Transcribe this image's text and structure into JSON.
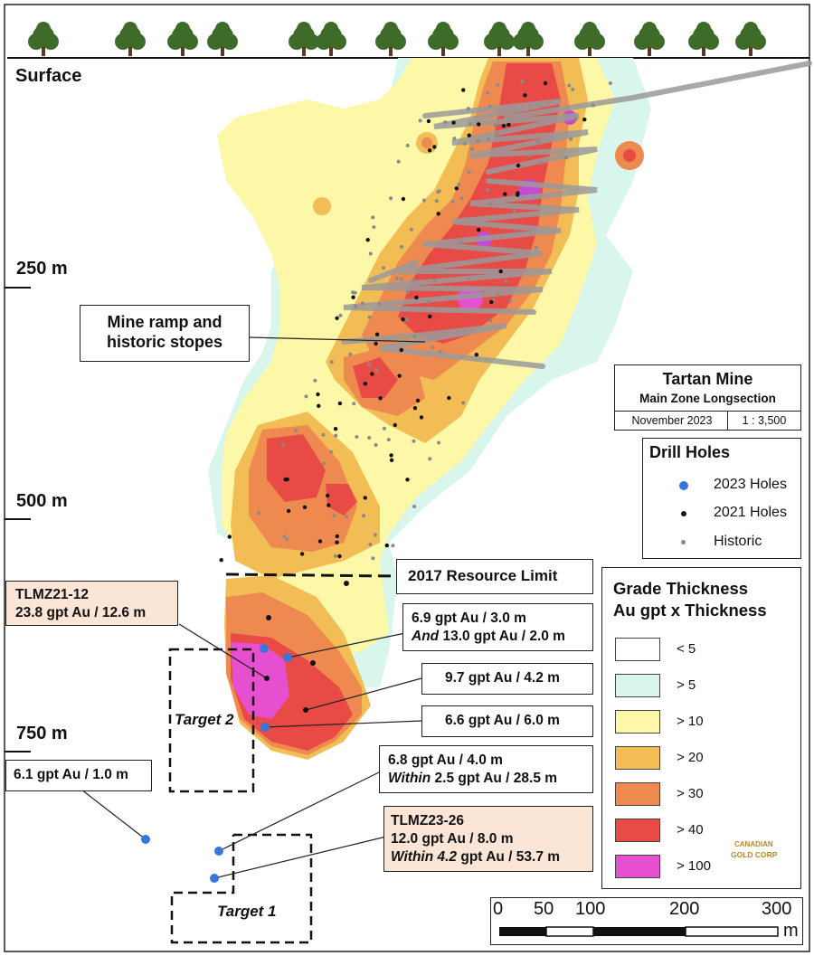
{
  "surface_label": "Surface",
  "depth_labels": [
    "250 m",
    "500 m",
    "750 m"
  ],
  "title_box": {
    "title": "Tartan Mine",
    "subtitle": "Main Zone Longsection",
    "date": "November 2023",
    "scale": "1 : 3,500"
  },
  "drill_holes": {
    "title": "Drill Holes",
    "items": [
      {
        "label": "2023 Holes",
        "color": "#3a75d8"
      },
      {
        "label": "2021 Holes",
        "color": "#111111"
      },
      {
        "label": "Historic",
        "color": "#8a8a8a"
      }
    ]
  },
  "grade_legend": {
    "title_line1": "Grade Thickness",
    "title_line2": "Au gpt x Thickness",
    "items": [
      {
        "label": "< 5",
        "color": "#ffffff"
      },
      {
        "label": "> 5",
        "color": "#d8f6ec"
      },
      {
        "label": "> 10",
        "color": "#fdf7a8"
      },
      {
        "label": "> 20",
        "color": "#f3bd55"
      },
      {
        "label": "> 30",
        "color": "#ee8a4f"
      },
      {
        "label": "> 40",
        "color": "#e84a45"
      },
      {
        "label": "> 100",
        "color": "#e64fd0"
      }
    ]
  },
  "callouts": {
    "mine_ramp": {
      "line1": "Mine ramp and",
      "line2": "historic stopes"
    },
    "resource_limit": "2017 Resource Limit",
    "tlmz21_12": {
      "line1": "TLMZ21-12",
      "line2": "23.8 gpt Au / 12.6 m"
    },
    "c_6_9": {
      "line1": "6.9 gpt Au / 3.0 m",
      "line2_em": "And",
      "line2_rest": " 13.0 gpt Au / 2.0 m"
    },
    "c_9_7": "9.7 gpt Au / 4.2 m",
    "c_6_6": "6.6 gpt Au / 6.0 m",
    "c_6_1": "6.1 gpt Au / 1.0 m",
    "c_6_8": {
      "line1": "6.8 gpt Au / 4.0 m",
      "line2_em": "Within",
      "line2_rest": " 2.5 gpt Au / 28.5 m"
    },
    "tlmz23_26": {
      "line1": "TLMZ23-26",
      "line2": "12.0 gpt Au / 8.0 m",
      "line3_em": "Within 4.2",
      "line3_rest": " gpt Au / 53.7 m"
    }
  },
  "targets": {
    "target1": "Target 1",
    "target2": "Target 2"
  },
  "scalebar": {
    "ticks": [
      "0",
      "50",
      "100",
      "200",
      "300"
    ],
    "unit": "m"
  },
  "logo": {
    "line1": "CANADIAN",
    "line2": "GOLD CORP"
  }
}
